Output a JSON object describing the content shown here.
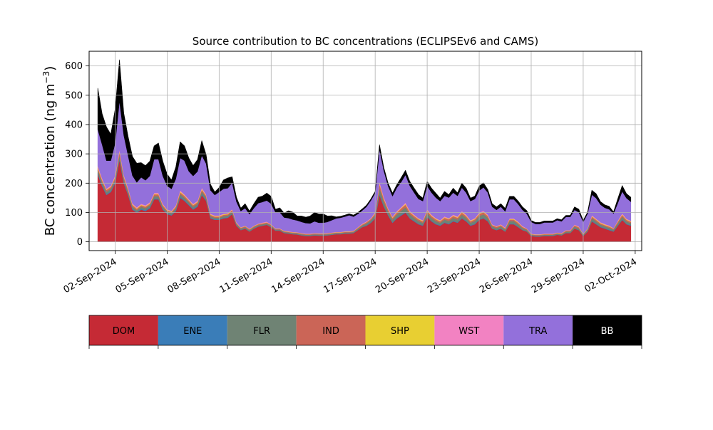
{
  "chart_data": {
    "type": "area",
    "stacked": true,
    "title": "Source contribution to BC concentrations (ECLIPSEv6 and CAMS)",
    "ylabel": "BC concentration (ng m",
    "ylabel_sup": "−3",
    "ylabel_end": ")",
    "xlabel": "",
    "ylim": [
      -30,
      650
    ],
    "y_ticks": [
      0,
      100,
      200,
      300,
      400,
      500,
      600
    ],
    "x_unit": "date",
    "xlim": [
      "2024-08-31T12:00",
      "2024-10-02T09:00"
    ],
    "x_ticks": [
      {
        "date": "2024-09-02",
        "label": "02-Sep-2024"
      },
      {
        "date": "2024-09-05",
        "label": "05-Sep-2024"
      },
      {
        "date": "2024-09-08",
        "label": "08-Sep-2024"
      },
      {
        "date": "2024-09-11",
        "label": "11-Sep-2024"
      },
      {
        "date": "2024-09-14",
        "label": "14-Sep-2024"
      },
      {
        "date": "2024-09-17",
        "label": "17-Sep-2024"
      },
      {
        "date": "2024-09-20",
        "label": "20-Sep-2024"
      },
      {
        "date": "2024-09-23",
        "label": "23-Sep-2024"
      },
      {
        "date": "2024-09-26",
        "label": "26-Sep-2024"
      },
      {
        "date": "2024-09-29",
        "label": "29-Sep-2024"
      },
      {
        "date": "2024-10-02",
        "label": "02-Oct-2024"
      }
    ],
    "grid": true,
    "legend_position": "below",
    "series": [
      {
        "name": "DOM",
        "color": "#c52a35",
        "text_color": "#000000"
      },
      {
        "name": "ENE",
        "color": "#3a7db8",
        "text_color": "#000000"
      },
      {
        "name": "FLR",
        "color": "#6f8374",
        "text_color": "#000000"
      },
      {
        "name": "IND",
        "color": "#cb6557",
        "text_color": "#000000"
      },
      {
        "name": "SHP",
        "color": "#e8cf32",
        "text_color": "#000000"
      },
      {
        "name": "WST",
        "color": "#f282c2",
        "text_color": "#000000"
      },
      {
        "name": "TRA",
        "color": "#9370db",
        "text_color": "#000000"
      },
      {
        "name": "BB",
        "color": "#000000",
        "text_color": "#ffffff"
      }
    ],
    "x": [
      "2024-09-01T00:00",
      "2024-09-01T06:00",
      "2024-09-01T12:00",
      "2024-09-01T18:00",
      "2024-09-02T00:00",
      "2024-09-02T06:00",
      "2024-09-02T12:00",
      "2024-09-02T18:00",
      "2024-09-03T00:00",
      "2024-09-03T06:00",
      "2024-09-03T12:00",
      "2024-09-03T18:00",
      "2024-09-04T00:00",
      "2024-09-04T06:00",
      "2024-09-04T12:00",
      "2024-09-04T18:00",
      "2024-09-05T00:00",
      "2024-09-05T06:00",
      "2024-09-05T12:00",
      "2024-09-05T18:00",
      "2024-09-06T00:00",
      "2024-09-06T06:00",
      "2024-09-06T12:00",
      "2024-09-06T18:00",
      "2024-09-07T00:00",
      "2024-09-07T06:00",
      "2024-09-07T12:00",
      "2024-09-07T18:00",
      "2024-09-08T00:00",
      "2024-09-08T06:00",
      "2024-09-08T12:00",
      "2024-09-08T18:00",
      "2024-09-09T00:00",
      "2024-09-09T06:00",
      "2024-09-09T12:00",
      "2024-09-09T18:00",
      "2024-09-10T00:00",
      "2024-09-10T06:00",
      "2024-09-10T12:00",
      "2024-09-10T18:00",
      "2024-09-11T00:00",
      "2024-09-11T06:00",
      "2024-09-11T12:00",
      "2024-09-11T18:00",
      "2024-09-12T00:00",
      "2024-09-12T06:00",
      "2024-09-12T12:00",
      "2024-09-12T18:00",
      "2024-09-13T00:00",
      "2024-09-13T06:00",
      "2024-09-13T12:00",
      "2024-09-13T18:00",
      "2024-09-14T00:00",
      "2024-09-14T06:00",
      "2024-09-14T12:00",
      "2024-09-14T18:00",
      "2024-09-15T00:00",
      "2024-09-15T06:00",
      "2024-09-15T12:00",
      "2024-09-15T18:00",
      "2024-09-16T00:00",
      "2024-09-16T06:00",
      "2024-09-16T12:00",
      "2024-09-16T18:00",
      "2024-09-17T00:00",
      "2024-09-17T06:00",
      "2024-09-17T12:00",
      "2024-09-17T18:00",
      "2024-09-18T00:00",
      "2024-09-18T06:00",
      "2024-09-18T12:00",
      "2024-09-18T18:00",
      "2024-09-19T00:00",
      "2024-09-19T06:00",
      "2024-09-19T12:00",
      "2024-09-19T18:00",
      "2024-09-20T00:00",
      "2024-09-20T06:00",
      "2024-09-20T12:00",
      "2024-09-20T18:00",
      "2024-09-21T00:00",
      "2024-09-21T06:00",
      "2024-09-21T12:00",
      "2024-09-21T18:00",
      "2024-09-22T00:00",
      "2024-09-22T06:00",
      "2024-09-22T12:00",
      "2024-09-22T18:00",
      "2024-09-23T00:00",
      "2024-09-23T06:00",
      "2024-09-23T12:00",
      "2024-09-23T18:00",
      "2024-09-24T00:00",
      "2024-09-24T06:00",
      "2024-09-24T12:00",
      "2024-09-24T18:00",
      "2024-09-25T00:00",
      "2024-09-25T06:00",
      "2024-09-25T12:00",
      "2024-09-25T18:00",
      "2024-09-26T00:00",
      "2024-09-26T06:00",
      "2024-09-26T12:00",
      "2024-09-26T18:00",
      "2024-09-27T00:00",
      "2024-09-27T06:00",
      "2024-09-27T12:00",
      "2024-09-27T18:00",
      "2024-09-28T00:00",
      "2024-09-28T06:00",
      "2024-09-28T12:00",
      "2024-09-28T18:00",
      "2024-09-29T00:00",
      "2024-09-29T06:00",
      "2024-09-29T12:00",
      "2024-09-29T18:00",
      "2024-09-30T00:00",
      "2024-09-30T06:00",
      "2024-09-30T12:00",
      "2024-09-30T18:00",
      "2024-10-01T00:00",
      "2024-10-01T06:00",
      "2024-10-01T12:00",
      "2024-10-01T18:00"
    ],
    "values": {
      "DOM": [
        230,
        190,
        160,
        170,
        200,
        280,
        200,
        160,
        110,
        100,
        110,
        105,
        115,
        145,
        145,
        110,
        95,
        90,
        105,
        150,
        140,
        125,
        110,
        120,
        160,
        140,
        80,
        75,
        75,
        80,
        82,
        95,
        55,
        40,
        45,
        35,
        45,
        52,
        55,
        58,
        50,
        38,
        38,
        30,
        28,
        26,
        25,
        22,
        20,
        20,
        22,
        21,
        21,
        22,
        24,
        26,
        26,
        28,
        28,
        30,
        40,
        50,
        55,
        65,
        80,
        160,
        120,
        90,
        65,
        80,
        90,
        100,
        80,
        70,
        60,
        55,
        85,
        70,
        60,
        55,
        65,
        60,
        70,
        65,
        80,
        70,
        55,
        60,
        75,
        80,
        70,
        45,
        40,
        45,
        35,
        60,
        60,
        50,
        40,
        35,
        20,
        18,
        18,
        20,
        20,
        20,
        24,
        22,
        30,
        30,
        45,
        40,
        20,
        35,
        70,
        60,
        50,
        45,
        40,
        35,
        55,
        75,
        60,
        55
      ],
      "ENE": [
        4,
        4,
        3,
        3,
        4,
        5,
        4,
        3,
        3,
        2,
        3,
        3,
        3,
        3,
        3,
        3,
        2,
        2,
        3,
        4,
        3,
        3,
        3,
        3,
        3,
        3,
        2,
        2,
        2,
        2,
        2,
        2,
        1,
        1,
        1,
        1,
        1,
        1,
        1,
        1,
        1,
        1,
        1,
        1,
        1,
        1,
        1,
        1,
        1,
        1,
        1,
        1,
        1,
        1,
        1,
        1,
        1,
        1,
        1,
        1,
        1,
        1,
        2,
        2,
        2,
        4,
        3,
        2,
        2,
        2,
        3,
        3,
        2,
        2,
        2,
        2,
        2,
        2,
        2,
        2,
        2,
        2,
        2,
        2,
        2,
        2,
        2,
        2,
        2,
        2,
        2,
        1,
        1,
        1,
        1,
        2,
        2,
        2,
        1,
        1,
        1,
        1,
        1,
        1,
        1,
        1,
        1,
        1,
        1,
        1,
        1,
        1,
        1,
        1,
        2,
        2,
        2,
        2,
        2,
        2,
        2,
        2,
        2,
        2
      ],
      "FLR": [
        10,
        9,
        8,
        8,
        9,
        12,
        10,
        8,
        7,
        6,
        7,
        7,
        7,
        8,
        8,
        7,
        6,
        6,
        7,
        9,
        8,
        8,
        7,
        7,
        9,
        8,
        6,
        5,
        5,
        6,
        6,
        6,
        5,
        4,
        4,
        4,
        4,
        4,
        4,
        4,
        4,
        3,
        3,
        3,
        3,
        3,
        3,
        3,
        3,
        3,
        3,
        3,
        3,
        3,
        3,
        3,
        3,
        3,
        3,
        3,
        4,
        5,
        6,
        7,
        9,
        20,
        14,
        11,
        9,
        11,
        13,
        15,
        12,
        10,
        9,
        8,
        12,
        10,
        9,
        8,
        9,
        9,
        10,
        9,
        11,
        10,
        8,
        9,
        11,
        12,
        10,
        7,
        6,
        7,
        6,
        9,
        9,
        8,
        6,
        5,
        3,
        3,
        3,
        3,
        3,
        3,
        3,
        3,
        4,
        4,
        6,
        5,
        3,
        5,
        9,
        8,
        7,
        6,
        6,
        5,
        7,
        9,
        8,
        7
      ],
      "IND": [
        8,
        7,
        6,
        6,
        7,
        10,
        8,
        7,
        6,
        5,
        5,
        5,
        5,
        6,
        6,
        5,
        4,
        4,
        5,
        6,
        6,
        5,
        5,
        5,
        6,
        6,
        4,
        4,
        4,
        4,
        4,
        5,
        3,
        3,
        3,
        3,
        3,
        3,
        3,
        3,
        3,
        2,
        2,
        2,
        2,
        2,
        2,
        2,
        2,
        2,
        2,
        2,
        2,
        2,
        2,
        2,
        2,
        2,
        2,
        2,
        3,
        3,
        4,
        4,
        6,
        12,
        9,
        7,
        6,
        7,
        8,
        9,
        7,
        6,
        6,
        5,
        7,
        6,
        6,
        5,
        6,
        6,
        6,
        6,
        7,
        6,
        5,
        6,
        7,
        7,
        6,
        4,
        4,
        4,
        4,
        5,
        5,
        5,
        4,
        3,
        2,
        2,
        2,
        2,
        2,
        2,
        2,
        2,
        3,
        3,
        4,
        4,
        2,
        3,
        5,
        5,
        4,
        4,
        4,
        3,
        5,
        6,
        5,
        4
      ],
      "SHP": [
        3,
        3,
        2,
        2,
        3,
        4,
        3,
        3,
        2,
        2,
        2,
        2,
        2,
        2,
        2,
        2,
        2,
        2,
        2,
        3,
        2,
        2,
        2,
        2,
        3,
        2,
        2,
        2,
        2,
        2,
        2,
        2,
        1,
        1,
        1,
        1,
        1,
        1,
        1,
        1,
        1,
        1,
        1,
        1,
        1,
        1,
        1,
        1,
        1,
        1,
        1,
        1,
        1,
        1,
        1,
        1,
        1,
        1,
        1,
        1,
        1,
        1,
        1,
        1,
        2,
        4,
        3,
        2,
        2,
        2,
        2,
        3,
        2,
        2,
        2,
        2,
        2,
        2,
        2,
        2,
        2,
        2,
        2,
        2,
        2,
        2,
        2,
        2,
        2,
        2,
        2,
        1,
        1,
        1,
        1,
        2,
        2,
        2,
        1,
        1,
        1,
        1,
        1,
        1,
        1,
        1,
        1,
        1,
        1,
        1,
        1,
        1,
        1,
        1,
        2,
        2,
        2,
        2,
        2,
        1,
        2,
        2,
        2,
        2
      ],
      "WST": [
        4,
        4,
        3,
        3,
        4,
        5,
        4,
        3,
        3,
        3,
        3,
        3,
        3,
        3,
        3,
        3,
        2,
        2,
        3,
        4,
        3,
        3,
        3,
        3,
        4,
        3,
        2,
        2,
        2,
        2,
        2,
        2,
        2,
        1,
        1,
        1,
        1,
        1,
        2,
        2,
        1,
        1,
        1,
        1,
        1,
        1,
        1,
        1,
        1,
        1,
        1,
        1,
        1,
        1,
        1,
        1,
        1,
        1,
        1,
        1,
        1,
        2,
        2,
        2,
        3,
        6,
        4,
        3,
        2,
        3,
        3,
        4,
        3,
        3,
        2,
        2,
        3,
        3,
        2,
        2,
        3,
        2,
        3,
        3,
        3,
        3,
        2,
        2,
        3,
        3,
        3,
        2,
        2,
        2,
        2,
        2,
        2,
        2,
        2,
        1,
        1,
        1,
        1,
        1,
        1,
        1,
        1,
        1,
        1,
        1,
        2,
        2,
        1,
        1,
        3,
        2,
        2,
        2,
        2,
        1,
        2,
        3,
        2,
        2
      ],
      "TRA": [
        125,
        115,
        95,
        85,
        110,
        165,
        135,
        110,
        95,
        85,
        90,
        85,
        90,
        115,
        115,
        95,
        80,
        75,
        90,
        110,
        115,
        95,
        95,
        100,
        110,
        105,
        80,
        70,
        80,
        85,
        85,
        90,
        70,
        55,
        60,
        50,
        60,
        70,
        70,
        72,
        70,
        55,
        55,
        45,
        45,
        42,
        40,
        38,
        36,
        35,
        40,
        36,
        36,
        38,
        42,
        46,
        48,
        50,
        55,
        48,
        45,
        45,
        50,
        60,
        65,
        110,
        90,
        75,
        70,
        80,
        85,
        95,
        85,
        75,
        65,
        65,
        80,
        75,
        70,
        65,
        70,
        70,
        75,
        70,
        80,
        75,
        65,
        65,
        75,
        80,
        75,
        60,
        55,
        60,
        55,
        65,
        65,
        60,
        55,
        50,
        40,
        35,
        35,
        38,
        38,
        38,
        42,
        40,
        45,
        45,
        50,
        48,
        40,
        50,
        70,
        70,
        60,
        55,
        55,
        50,
        60,
        75,
        70,
        65
      ],
      "BB": [
        140,
        105,
        115,
        90,
        115,
        140,
        75,
        65,
        65,
        65,
        50,
        50,
        50,
        45,
        55,
        50,
        40,
        30,
        40,
        55,
        50,
        45,
        35,
        40,
        50,
        30,
        20,
        10,
        15,
        30,
        35,
        20,
        15,
        10,
        15,
        10,
        15,
        20,
        20,
        25,
        25,
        10,
        15,
        15,
        25,
        25,
        15,
        20,
        20,
        25,
        30,
        30,
        30,
        20,
        15,
        5,
        5,
        5,
        5,
        5,
        5,
        5,
        5,
        5,
        5,
        15,
        10,
        10,
        10,
        10,
        15,
        15,
        15,
        15,
        15,
        10,
        15,
        15,
        15,
        10,
        15,
        10,
        15,
        10,
        15,
        15,
        10,
        10,
        15,
        15,
        10,
        10,
        10,
        10,
        10,
        10,
        10,
        10,
        10,
        10,
        5,
        5,
        5,
        5,
        5,
        5,
        5,
        5,
        5,
        5,
        10,
        10,
        5,
        5,
        15,
        15,
        10,
        10,
        10,
        5,
        15,
        20,
        15,
        15
      ]
    }
  }
}
